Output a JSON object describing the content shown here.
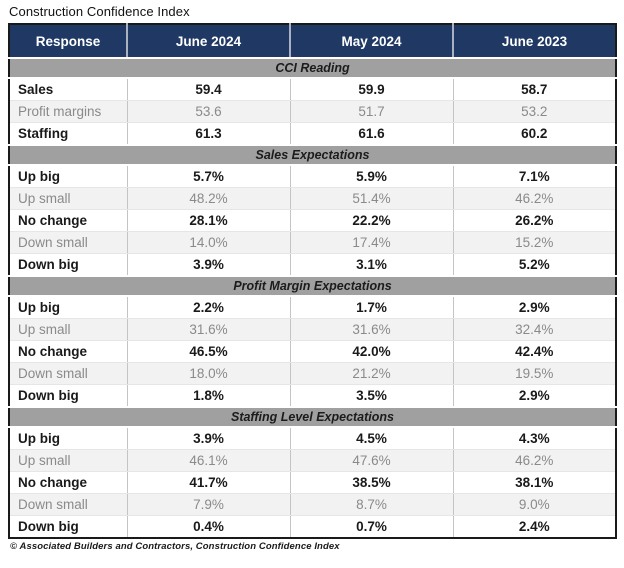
{
  "title": "Construction Confidence Index",
  "footer": "© Associated Builders and Contractors, Construction Confidence Index",
  "colors": {
    "header_bg": "#1f3864",
    "header_text": "#ffffff",
    "section_bg": "#a0a0a0",
    "alt_row_bg": "#f2f2f2",
    "muted_text": "#8a8a8a",
    "strong_text": "#1a1a1a"
  },
  "chart_data": {
    "type": "table",
    "title": "Construction Confidence Index",
    "columns": [
      "Response",
      "June 2024",
      "May 2024",
      "June 2023"
    ],
    "sections": [
      {
        "title": "CCI Reading",
        "rows": [
          {
            "label": "Sales",
            "values": [
              "59.4",
              "59.9",
              "58.7"
            ]
          },
          {
            "label": "Profit margins",
            "values": [
              "53.6",
              "51.7",
              "53.2"
            ]
          },
          {
            "label": "Staffing",
            "values": [
              "61.3",
              "61.6",
              "60.2"
            ]
          }
        ]
      },
      {
        "title": "Sales Expectations",
        "rows": [
          {
            "label": "Up big",
            "values": [
              "5.7%",
              "5.9%",
              "7.1%"
            ]
          },
          {
            "label": "Up small",
            "values": [
              "48.2%",
              "51.4%",
              "46.2%"
            ]
          },
          {
            "label": "No change",
            "values": [
              "28.1%",
              "22.2%",
              "26.2%"
            ]
          },
          {
            "label": "Down small",
            "values": [
              "14.0%",
              "17.4%",
              "15.2%"
            ]
          },
          {
            "label": "Down big",
            "values": [
              "3.9%",
              "3.1%",
              "5.2%"
            ]
          }
        ]
      },
      {
        "title": "Profit Margin Expectations",
        "rows": [
          {
            "label": "Up big",
            "values": [
              "2.2%",
              "1.7%",
              "2.9%"
            ]
          },
          {
            "label": "Up small",
            "values": [
              "31.6%",
              "31.6%",
              "32.4%"
            ]
          },
          {
            "label": "No change",
            "values": [
              "46.5%",
              "42.0%",
              "42.4%"
            ]
          },
          {
            "label": "Down small",
            "values": [
              "18.0%",
              "21.2%",
              "19.5%"
            ]
          },
          {
            "label": "Down big",
            "values": [
              "1.8%",
              "3.5%",
              "2.9%"
            ]
          }
        ]
      },
      {
        "title": "Staffing Level Expectations",
        "rows": [
          {
            "label": "Up big",
            "values": [
              "3.9%",
              "4.5%",
              "4.3%"
            ]
          },
          {
            "label": "Up small",
            "values": [
              "46.1%",
              "47.6%",
              "46.2%"
            ]
          },
          {
            "label": "No change",
            "values": [
              "41.7%",
              "38.5%",
              "38.1%"
            ]
          },
          {
            "label": "Down small",
            "values": [
              "7.9%",
              "8.7%",
              "9.0%"
            ]
          },
          {
            "label": "Down big",
            "values": [
              "0.4%",
              "0.7%",
              "2.4%"
            ]
          }
        ]
      }
    ]
  }
}
